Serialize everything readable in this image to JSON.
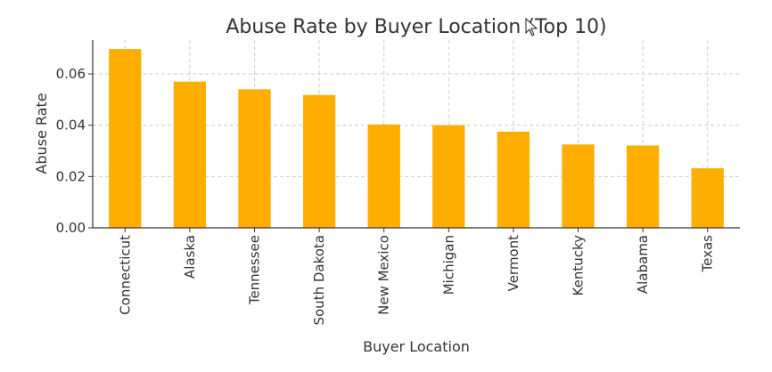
{
  "chart_data": {
    "type": "bar",
    "title": "Abuse Rate by Buyer Location (Top 10)",
    "xlabel": "Buyer Location",
    "ylabel": "Abuse Rate",
    "categories": [
      "Connecticut",
      "Alaska",
      "Tennessee",
      "South Dakota",
      "New Mexico",
      "Michigan",
      "Vermont",
      "Kentucky",
      "Alabama",
      "Texas"
    ],
    "values": [
      0.0697,
      0.057,
      0.054,
      0.0518,
      0.0403,
      0.04,
      0.0375,
      0.0325,
      0.0321,
      0.0232
    ],
    "yticks": [
      "0.00",
      "0.02",
      "0.04",
      "0.06"
    ],
    "ytick_values": [
      0,
      0.02,
      0.04,
      0.06
    ],
    "ylim": [
      0,
      0.0732
    ],
    "grid": true,
    "bar_color": "#FFAE00"
  }
}
